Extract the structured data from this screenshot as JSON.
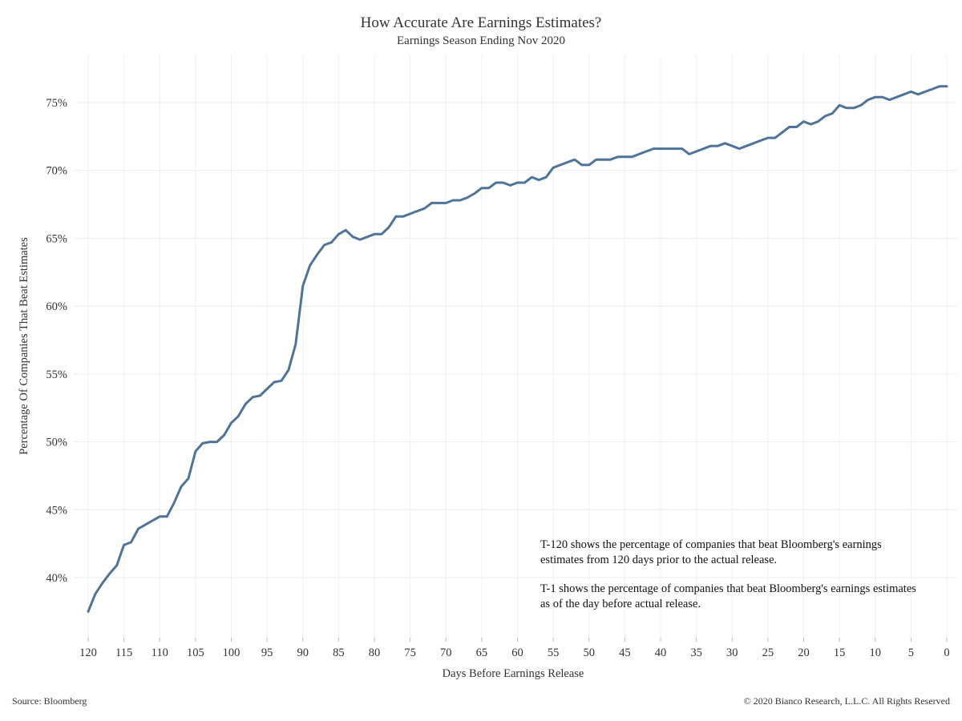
{
  "chart_data": {
    "type": "line",
    "title": "How Accurate Are Earnings Estimates?",
    "subtitle": "Earnings Season Ending Nov 2020",
    "xlabel": "Days Before Earnings Release",
    "ylabel": "Percentage Of Companies That Beat Estimates",
    "xlim": [
      120,
      0
    ],
    "ylim": [
      35,
      77
    ],
    "x_reversed": true,
    "x_ticks": [
      120,
      115,
      110,
      105,
      100,
      95,
      90,
      85,
      80,
      75,
      70,
      65,
      60,
      55,
      50,
      45,
      40,
      35,
      30,
      25,
      20,
      15,
      10,
      5,
      0
    ],
    "x_tick_labels": [
      "120",
      "115",
      "110",
      "105",
      "100",
      "95",
      "90",
      "85",
      "80",
      "75",
      "70",
      "65",
      "60",
      "55",
      "50",
      "45",
      "40",
      "35",
      "30",
      "25",
      "20",
      "15",
      "10",
      "5",
      "0"
    ],
    "y_ticks": [
      40,
      45,
      50,
      55,
      60,
      65,
      70,
      75
    ],
    "y_tick_labels": [
      "40%",
      "45%",
      "50%",
      "55%",
      "60%",
      "65%",
      "70%",
      "75%"
    ],
    "grid": true,
    "series": [
      {
        "color": "#4f7399",
        "x": [
          120,
          119,
          118,
          117,
          116,
          115,
          114,
          113,
          112,
          111,
          110,
          109,
          108,
          107,
          106,
          105,
          104,
          103,
          102,
          101,
          100,
          99,
          98,
          97,
          96,
          95,
          94,
          93,
          92,
          91,
          90,
          89,
          88,
          87,
          86,
          85,
          84,
          83,
          82,
          81,
          80,
          79,
          78,
          77,
          76,
          75,
          74,
          73,
          72,
          71,
          70,
          69,
          68,
          67,
          66,
          65,
          64,
          63,
          62,
          61,
          60,
          59,
          58,
          57,
          56,
          55,
          54,
          53,
          52,
          51,
          50,
          49,
          48,
          47,
          46,
          45,
          44,
          43,
          42,
          41,
          40,
          39,
          38,
          37,
          36,
          35,
          34,
          33,
          32,
          31,
          30,
          29,
          28,
          27,
          26,
          25,
          24,
          23,
          22,
          21,
          20,
          19,
          18,
          17,
          16,
          15,
          14,
          13,
          12,
          11,
          10,
          9,
          8,
          7,
          6,
          5,
          4,
          3,
          2,
          1,
          0
        ],
        "y": [
          37.5,
          38.8,
          39.6,
          40.3,
          40.9,
          42.4,
          42.6,
          43.6,
          43.9,
          44.2,
          44.5,
          44.5,
          45.5,
          46.7,
          47.3,
          49.3,
          49.9,
          50.0,
          50.0,
          50.5,
          51.4,
          51.9,
          52.8,
          53.3,
          53.4,
          53.9,
          54.4,
          54.5,
          55.3,
          57.2,
          61.5,
          63.0,
          63.8,
          64.5,
          64.7,
          65.3,
          65.6,
          65.1,
          64.9,
          65.1,
          65.3,
          65.3,
          65.8,
          66.6,
          66.6,
          66.8,
          67.0,
          67.2,
          67.6,
          67.6,
          67.6,
          67.8,
          67.8,
          68.0,
          68.3,
          68.7,
          68.7,
          69.1,
          69.1,
          68.9,
          69.1,
          69.1,
          69.5,
          69.3,
          69.5,
          70.2,
          70.4,
          70.6,
          70.8,
          70.4,
          70.4,
          70.8,
          70.8,
          70.8,
          71.0,
          71.0,
          71.0,
          71.2,
          71.4,
          71.6,
          71.6,
          71.6,
          71.6,
          71.6,
          71.2,
          71.4,
          71.6,
          71.8,
          71.8,
          72.0,
          71.8,
          71.6,
          71.8,
          72.0,
          72.2,
          72.4,
          72.4,
          72.8,
          73.2,
          73.2,
          73.6,
          73.4,
          73.6,
          74.0,
          74.2,
          74.8,
          74.6,
          74.6,
          74.8,
          75.2,
          75.4,
          75.4,
          75.2,
          75.4,
          75.6,
          75.8,
          75.6,
          75.8,
          76.0,
          76.2,
          76.2
        ]
      }
    ],
    "annotations": [
      "T-120 shows the percentage of companies that beat Bloomberg's earnings estimates from 120 days prior to the actual release.",
      "T-1 shows the percentage of companies that beat Bloomberg's earnings estimates as of the day before actual release."
    ]
  },
  "footer": {
    "source": "Source: Bloomberg",
    "copyright": "© 2020 Bianco Research, L.L.C. All Rights Reserved"
  }
}
